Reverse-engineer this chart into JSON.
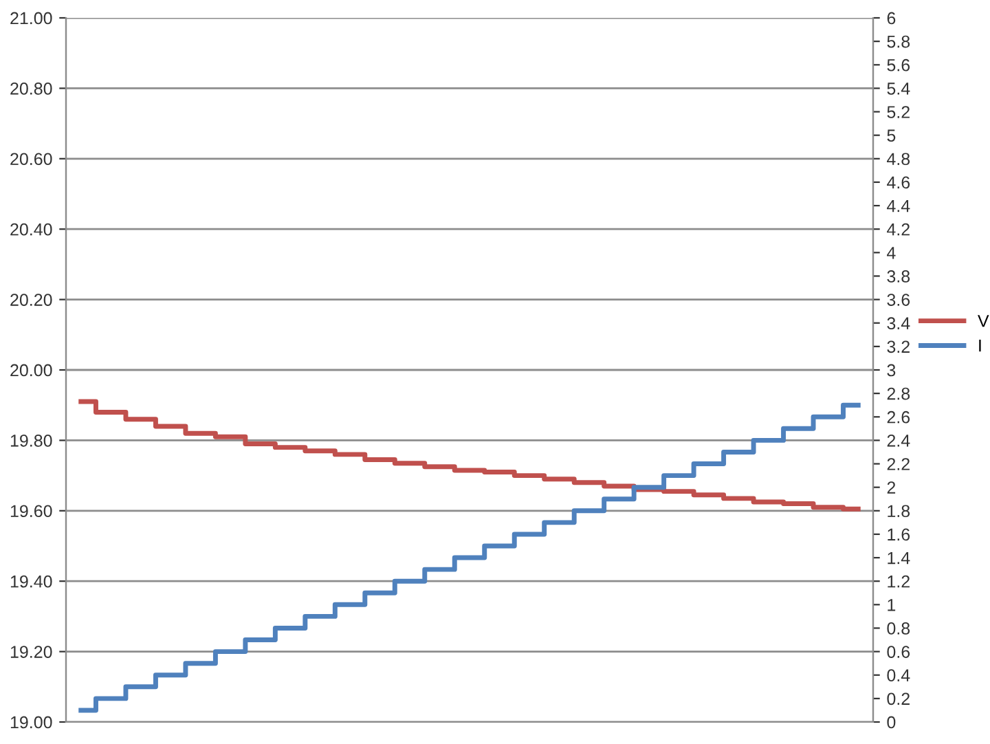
{
  "chart_data": {
    "type": "step",
    "categories": [
      null,
      null,
      null,
      null,
      null,
      null,
      null,
      null,
      null,
      null,
      null,
      null,
      null,
      null,
      null,
      null,
      null,
      null,
      null,
      null,
      null,
      null,
      null,
      null,
      null,
      null,
      null
    ],
    "series": [
      {
        "name": "V",
        "color": "#c0504d",
        "values": [
          19.91,
          19.88,
          19.86,
          19.84,
          19.82,
          19.81,
          19.79,
          19.78,
          19.77,
          19.76,
          19.745,
          19.735,
          19.725,
          19.715,
          19.71,
          19.7,
          19.69,
          19.68,
          19.67,
          19.66,
          19.655,
          19.645,
          19.635,
          19.625,
          19.62,
          19.61,
          19.605
        ]
      },
      {
        "name": "I",
        "color": "#4f81bd",
        "axis": "y2",
        "values": [
          0.1,
          0.2,
          0.3,
          0.4,
          0.5,
          0.6,
          0.7,
          0.8,
          0.9,
          1.0,
          1.1,
          1.2,
          1.3,
          1.4,
          1.5,
          1.6,
          1.7,
          1.8,
          1.9,
          2.0,
          2.1,
          2.2,
          2.3,
          2.4,
          2.5,
          2.6,
          2.7
        ]
      }
    ],
    "ylim": [
      19.0,
      21.0
    ],
    "yticks": [
      {
        "value": 19.0,
        "label": "19.00"
      },
      {
        "value": 19.2,
        "label": "19.20"
      },
      {
        "value": 19.4,
        "label": "19.40"
      },
      {
        "value": 19.6,
        "label": "19.60"
      },
      {
        "value": 19.8,
        "label": "19.80"
      },
      {
        "value": 20.0,
        "label": "20.00"
      },
      {
        "value": 20.2,
        "label": "20.20"
      },
      {
        "value": 20.4,
        "label": "20.40"
      },
      {
        "value": 20.6,
        "label": "20.60"
      },
      {
        "value": 20.8,
        "label": "20.80"
      },
      {
        "value": 21.0,
        "label": "21.00"
      }
    ],
    "y2lim": [
      0,
      6
    ],
    "y2ticks": [
      0,
      0.2,
      0.4,
      0.6,
      0.8,
      1,
      1.2,
      1.4,
      1.6,
      1.8,
      2,
      2.2,
      2.4,
      2.6,
      2.8,
      3,
      3.2,
      3.4,
      3.6,
      3.8,
      4,
      4.2,
      4.4,
      4.6,
      4.8,
      5,
      5.2,
      5.4,
      5.6,
      5.8,
      6
    ],
    "grid": "y",
    "legend": "right"
  }
}
